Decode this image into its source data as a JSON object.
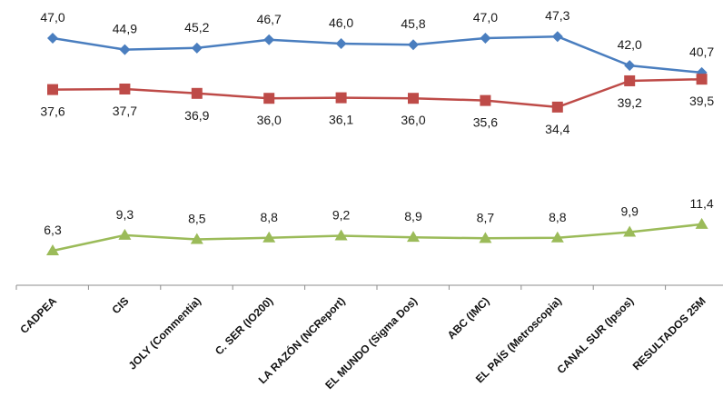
{
  "chart_data": {
    "type": "line",
    "title": "",
    "xlabel": "",
    "ylabel": "",
    "grid": false,
    "legend": "none",
    "categories": [
      "CADPEA",
      "CIS",
      "JOLY (Commentia)",
      "C. SER (IO200)",
      "LA RAZÓN (NCReport)",
      "EL MUNDO (Sigma Dos)",
      "ABC (IMC)",
      "EL PAÍS (Metroscopia)",
      "CANAL SUR (Ipsos)",
      "RESULTADOS 25M"
    ],
    "series": [
      {
        "color": "#4a7ebf",
        "marker": "diamond",
        "values": [
          47.0,
          44.9,
          45.2,
          46.7,
          46.0,
          45.8,
          47.0,
          47.3,
          42.0,
          40.7
        ],
        "labels": [
          "47,0",
          "44,9",
          "45,2",
          "46,7",
          "46,0",
          "45,8",
          "47,0",
          "47,3",
          "42,0",
          "40,7"
        ],
        "label_position": "above"
      },
      {
        "color": "#be4b48",
        "marker": "square",
        "values": [
          37.6,
          37.7,
          36.9,
          36.0,
          36.1,
          36.0,
          35.6,
          34.4,
          39.2,
          39.5
        ],
        "labels": [
          "37,6",
          "37,7",
          "36,9",
          "36,0",
          "36,1",
          "36,0",
          "35,6",
          "34,4",
          "39,2",
          "39,5"
        ],
        "label_position": "below"
      },
      {
        "color": "#9bbb59",
        "marker": "triangle",
        "values": [
          6.3,
          9.3,
          8.5,
          8.8,
          9.2,
          8.9,
          8.7,
          8.8,
          9.9,
          11.4
        ],
        "labels": [
          "6,3",
          "9,3",
          "8,5",
          "8,8",
          "9,2",
          "8,9",
          "8,7",
          "8,8",
          "9,9",
          "11,4"
        ],
        "label_position": "above"
      }
    ]
  }
}
